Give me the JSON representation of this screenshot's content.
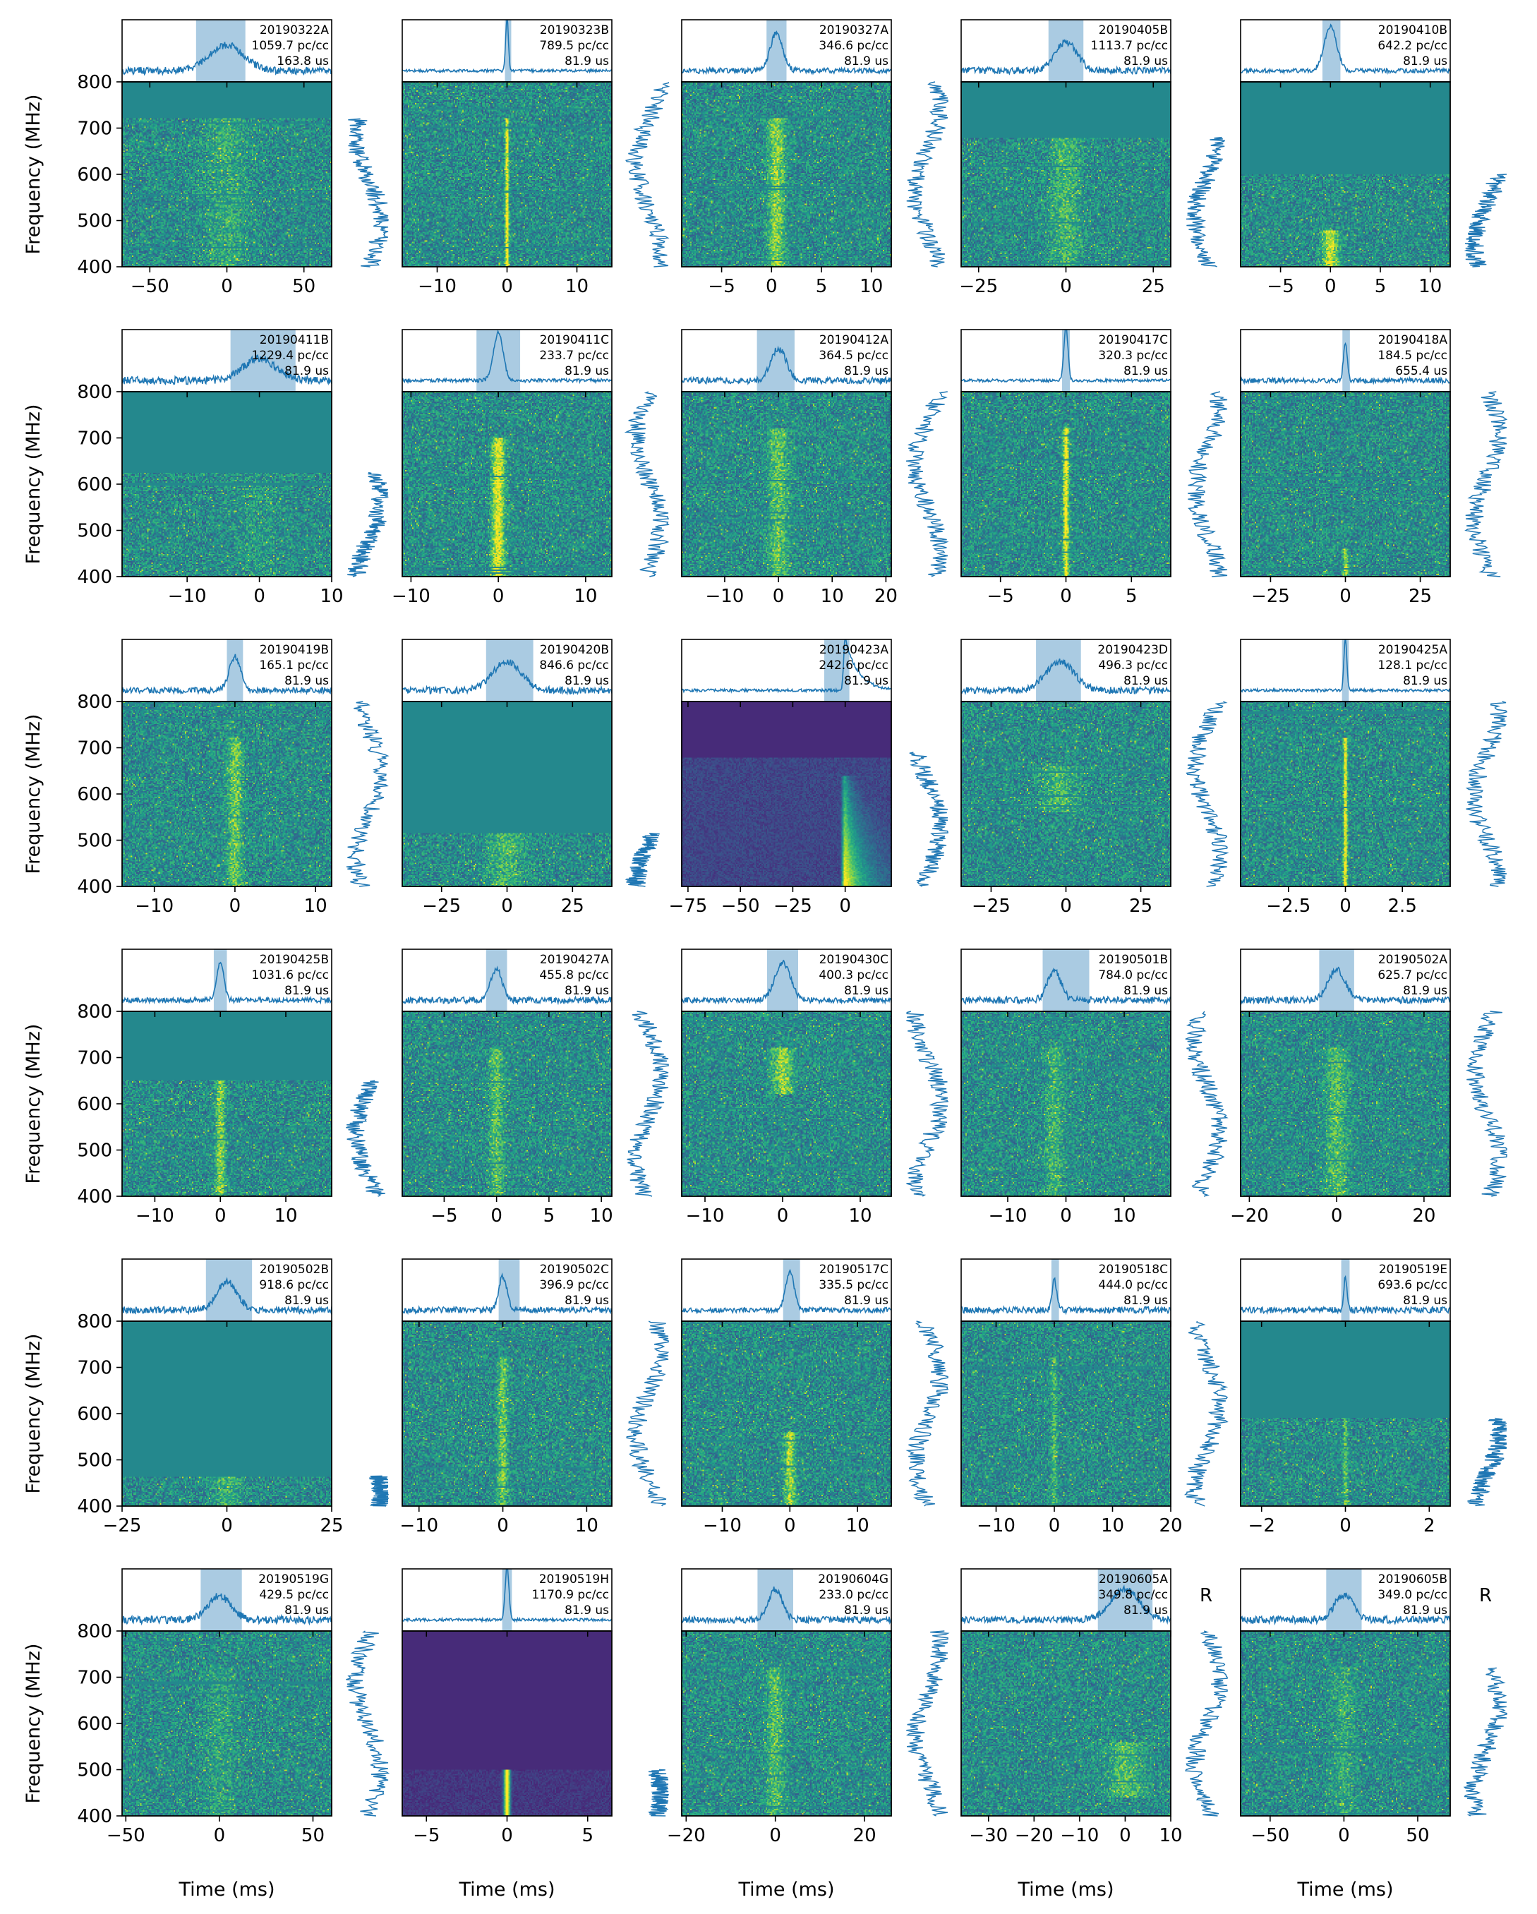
{
  "figure": {
    "ylabel": "Frequency (MHz)",
    "xlabel": "Time (ms)",
    "y_ticks": [
      400,
      500,
      600,
      700,
      800
    ]
  },
  "chart_data": [
    {
      "type": "heatmap",
      "name": "20190322A",
      "dm": "1059.7 pc/cc",
      "res": "163.8 us",
      "xlim": [
        -68,
        68
      ],
      "xticks": [
        -50,
        0,
        50
      ],
      "highlight": [
        -20,
        12
      ],
      "peak": 0,
      "width": 14,
      "heat": "speckle",
      "band": [
        400,
        720
      ],
      "burst_band": [
        400,
        720
      ],
      "burst_strength": 0.2,
      "spec": [
        400,
        720
      ],
      "marker": null
    },
    {
      "type": "heatmap",
      "name": "20190323B",
      "dm": "789.5 pc/cc",
      "res": "81.9 us",
      "xlim": [
        -15,
        15
      ],
      "xticks": [
        -10,
        0,
        10
      ],
      "highlight": [
        -0.3,
        0.6
      ],
      "peak": 0,
      "width": 0.25,
      "heat": "speckle",
      "band": [
        400,
        800
      ],
      "burst_band": [
        400,
        720
      ],
      "burst_strength": 1,
      "spec": [
        400,
        800
      ],
      "marker": null
    },
    {
      "type": "heatmap",
      "name": "20190327A",
      "dm": "346.6 pc/cc",
      "res": "81.9 us",
      "xlim": [
        -9,
        12
      ],
      "xticks": [
        -5,
        0,
        5,
        10
      ],
      "highlight": [
        -0.5,
        1.5
      ],
      "peak": 0.5,
      "width": 0.8,
      "heat": "speckle",
      "band": [
        400,
        800
      ],
      "burst_band": [
        400,
        720
      ],
      "burst_strength": 0.55,
      "spec": [
        400,
        800
      ],
      "marker": null
    },
    {
      "type": "heatmap",
      "name": "20190405B",
      "dm": "1113.7 pc/cc",
      "res": "81.9 us",
      "xlim": [
        -30,
        30
      ],
      "xticks": [
        -25,
        0,
        25
      ],
      "highlight": [
        -5,
        5
      ],
      "peak": 0,
      "width": 4,
      "heat": "speckle",
      "band": [
        400,
        680
      ],
      "burst_band": [
        400,
        680
      ],
      "burst_strength": 0.3,
      "spec": [
        400,
        680
      ],
      "marker": null
    },
    {
      "type": "heatmap",
      "name": "20190410B",
      "dm": "642.2 pc/cc",
      "res": "81.9 us",
      "xlim": [
        -9,
        12
      ],
      "xticks": [
        -5,
        0,
        5,
        10
      ],
      "highlight": [
        -0.8,
        1
      ],
      "peak": 0,
      "width": 0.8,
      "heat": "speckle",
      "band": [
        400,
        600
      ],
      "burst_band": [
        400,
        480
      ],
      "burst_strength": 0.75,
      "spec": [
        400,
        600
      ],
      "marker": null
    },
    {
      "type": "heatmap",
      "name": "20190411B",
      "dm": "1229.4 pc/cc",
      "res": "81.9 us",
      "xlim": [
        -19,
        10
      ],
      "xticks": [
        -10,
        0,
        10
      ],
      "highlight": [
        -4,
        5
      ],
      "peak": 0,
      "width": 3,
      "heat": "speckle",
      "band": [
        400,
        625
      ],
      "burst_band": [
        400,
        625
      ],
      "burst_strength": 0.1,
      "spec": [
        400,
        625
      ],
      "marker": null
    },
    {
      "type": "heatmap",
      "name": "20190411C",
      "dm": "233.7 pc/cc",
      "res": "81.9 us",
      "xlim": [
        -11,
        13
      ],
      "xticks": [
        -10,
        0,
        10
      ],
      "highlight": [
        -2.5,
        2.5
      ],
      "peak": 0,
      "width": 0.7,
      "heat": "speckle",
      "band": [
        400,
        800
      ],
      "burst_band": [
        400,
        700
      ],
      "burst_strength": 0.85,
      "spec": [
        400,
        800
      ],
      "marker": null
    },
    {
      "type": "heatmap",
      "name": "20190412A",
      "dm": "364.5 pc/cc",
      "res": "81.9 us",
      "xlim": [
        -18,
        21
      ],
      "xticks": [
        -10,
        0,
        10,
        20
      ],
      "highlight": [
        -4,
        3
      ],
      "peak": 0,
      "width": 1.8,
      "heat": "speckle",
      "band": [
        400,
        800
      ],
      "burst_band": [
        400,
        720
      ],
      "burst_strength": 0.4,
      "spec": [
        400,
        800
      ],
      "marker": null
    },
    {
      "type": "heatmap",
      "name": "20190417C",
      "dm": "320.3 pc/cc",
      "res": "81.9 us",
      "xlim": [
        -8,
        8
      ],
      "xticks": [
        -5,
        0,
        5
      ],
      "highlight": [
        -0.3,
        0.3
      ],
      "peak": 0,
      "width": 0.2,
      "heat": "speckle",
      "band": [
        400,
        800
      ],
      "burst_band": [
        400,
        720
      ],
      "burst_strength": 1,
      "spec": [
        400,
        800
      ],
      "marker": null
    },
    {
      "type": "heatmap",
      "name": "20190418A",
      "dm": "184.5 pc/cc",
      "res": "655.4 us",
      "xlim": [
        -35,
        35
      ],
      "xticks": [
        -25,
        0,
        25
      ],
      "highlight": [
        -1,
        1.5
      ],
      "peak": 0,
      "width": 0.8,
      "heat": "speckle",
      "band": [
        400,
        800
      ],
      "burst_band": [
        400,
        460
      ],
      "burst_strength": 0.6,
      "spec": [
        400,
        800
      ],
      "marker": null
    },
    {
      "type": "heatmap",
      "name": "20190419B",
      "dm": "165.1 pc/cc",
      "res": "81.9 us",
      "xlim": [
        -14,
        12
      ],
      "xticks": [
        -10,
        0,
        10
      ],
      "highlight": [
        -1,
        1
      ],
      "peak": 0,
      "width": 0.9,
      "heat": "speckle",
      "band": [
        400,
        800
      ],
      "burst_band": [
        400,
        720
      ],
      "burst_strength": 0.45,
      "spec": [
        400,
        800
      ],
      "marker": null
    },
    {
      "type": "heatmap",
      "name": "20190420B",
      "dm": "846.6 pc/cc",
      "res": "81.9 us",
      "xlim": [
        -40,
        40
      ],
      "xticks": [
        -25,
        0,
        25
      ],
      "highlight": [
        -8,
        10
      ],
      "peak": 0,
      "width": 7,
      "heat": "speckle",
      "band": [
        400,
        515
      ],
      "burst_band": [
        400,
        515
      ],
      "burst_strength": 0.3,
      "spec": [
        400,
        515
      ],
      "marker": null
    },
    {
      "type": "heatmap",
      "name": "20190423A",
      "dm": "242.6 pc/cc",
      "res": "81.9 us",
      "xlim": [
        -78,
        22
      ],
      "xticks": [
        -75,
        -50,
        -25,
        0
      ],
      "highlight": [
        -10,
        2
      ],
      "peak": 0,
      "width": 3,
      "heat": "scatter",
      "band": [
        400,
        680
      ],
      "burst_band": [
        400,
        640
      ],
      "burst_strength": 1,
      "spec": [
        400,
        690
      ],
      "marker": null
    },
    {
      "type": "heatmap",
      "name": "20190423D",
      "dm": "496.3 pc/cc",
      "res": "81.9 us",
      "xlim": [
        -35,
        35
      ],
      "xticks": [
        -25,
        0,
        25
      ],
      "highlight": [
        -10,
        5
      ],
      "peak": -2,
      "width": 6,
      "heat": "speckle",
      "band": [
        400,
        800
      ],
      "burst_band": [
        560,
        660
      ],
      "burst_strength": 0.3,
      "spec": [
        400,
        800
      ],
      "marker": null
    },
    {
      "type": "heatmap",
      "name": "20190425A",
      "dm": "128.1 pc/cc",
      "res": "81.9 us",
      "xlim": [
        -4.6,
        4.6
      ],
      "xticks": [
        -2.5,
        0,
        2.5
      ],
      "highlight": [
        -0.15,
        0.15
      ],
      "peak": 0,
      "width": 0.08,
      "heat": "speckle",
      "band": [
        400,
        800
      ],
      "burst_band": [
        400,
        720
      ],
      "burst_strength": 1,
      "spec": [
        400,
        800
      ],
      "marker": null
    },
    {
      "type": "heatmap",
      "name": "20190425B",
      "dm": "1031.6 pc/cc",
      "res": "81.9 us",
      "xlim": [
        -15,
        17
      ],
      "xticks": [
        -10,
        0,
        10
      ],
      "highlight": [
        -1,
        1
      ],
      "peak": 0,
      "width": 0.7,
      "heat": "speckle",
      "band": [
        400,
        650
      ],
      "burst_band": [
        400,
        650
      ],
      "burst_strength": 0.55,
      "spec": [
        400,
        650
      ],
      "marker": null
    },
    {
      "type": "heatmap",
      "name": "20190427A",
      "dm": "455.8 pc/cc",
      "res": "81.9 us",
      "xlim": [
        -9,
        11
      ],
      "xticks": [
        -5,
        0,
        5,
        10
      ],
      "highlight": [
        -1,
        1
      ],
      "peak": 0,
      "width": 0.7,
      "heat": "speckle",
      "band": [
        400,
        800
      ],
      "burst_band": [
        400,
        720
      ],
      "burst_strength": 0.35,
      "spec": [
        400,
        800
      ],
      "marker": null
    },
    {
      "type": "heatmap",
      "name": "20190430C",
      "dm": "400.3 pc/cc",
      "res": "81.9 us",
      "xlim": [
        -13,
        14
      ],
      "xticks": [
        -10,
        0,
        10
      ],
      "highlight": [
        -2,
        2
      ],
      "peak": 0,
      "width": 1.3,
      "heat": "speckle",
      "band": [
        400,
        800
      ],
      "burst_band": [
        620,
        720
      ],
      "burst_strength": 0.55,
      "spec": [
        400,
        800
      ],
      "marker": null
    },
    {
      "type": "heatmap",
      "name": "20190501B",
      "dm": "784.0 pc/cc",
      "res": "81.9 us",
      "xlim": [
        -18,
        18
      ],
      "xticks": [
        -10,
        0,
        10
      ],
      "highlight": [
        -4,
        4
      ],
      "peak": -2,
      "width": 1.5,
      "heat": "speckle",
      "band": [
        400,
        800
      ],
      "burst_band": [
        400,
        720
      ],
      "burst_strength": 0.3,
      "spec": [
        400,
        800
      ],
      "marker": null
    },
    {
      "type": "heatmap",
      "name": "20190502A",
      "dm": "625.7 pc/cc",
      "res": "81.9 us",
      "xlim": [
        -22,
        26
      ],
      "xticks": [
        -20,
        0,
        20
      ],
      "highlight": [
        -4,
        4
      ],
      "peak": 0,
      "width": 2.5,
      "heat": "speckle",
      "band": [
        400,
        800
      ],
      "burst_band": [
        400,
        720
      ],
      "burst_strength": 0.35,
      "spec": [
        400,
        800
      ],
      "marker": null
    },
    {
      "type": "heatmap",
      "name": "20190502B",
      "dm": "918.6 pc/cc",
      "res": "81.9 us",
      "xlim": [
        -25,
        25
      ],
      "xticks": [
        -25,
        0,
        25
      ],
      "highlight": [
        -5,
        6
      ],
      "peak": 0,
      "width": 3,
      "heat": "speckle",
      "band": [
        400,
        465
      ],
      "burst_band": [
        400,
        465
      ],
      "burst_strength": 0.3,
      "spec": [
        400,
        465
      ],
      "marker": null
    },
    {
      "type": "heatmap",
      "name": "20190502C",
      "dm": "396.9 pc/cc",
      "res": "81.9 us",
      "xlim": [
        -12,
        13
      ],
      "xticks": [
        -10,
        0,
        10
      ],
      "highlight": [
        -0.5,
        2
      ],
      "peak": 0,
      "width": 0.6,
      "heat": "speckle",
      "band": [
        400,
        800
      ],
      "burst_band": [
        400,
        720
      ],
      "burst_strength": 0.45,
      "spec": [
        400,
        800
      ],
      "marker": null
    },
    {
      "type": "heatmap",
      "name": "20190517C",
      "dm": "335.5 pc/cc",
      "res": "81.9 us",
      "xlim": [
        -16,
        15
      ],
      "xticks": [
        -10,
        0,
        10
      ],
      "highlight": [
        -1,
        1.5
      ],
      "peak": 0,
      "width": 0.8,
      "heat": "speckle",
      "band": [
        400,
        800
      ],
      "burst_band": [
        400,
        560
      ],
      "burst_strength": 0.6,
      "spec": [
        400,
        800
      ],
      "marker": null
    },
    {
      "type": "heatmap",
      "name": "20190518C",
      "dm": "444.0 pc/cc",
      "res": "81.9 us",
      "xlim": [
        -16,
        20
      ],
      "xticks": [
        -10,
        0,
        10,
        20
      ],
      "highlight": [
        -0.5,
        0.8
      ],
      "peak": 0,
      "width": 0.5,
      "heat": "speckle",
      "band": [
        400,
        800
      ],
      "burst_band": [
        400,
        720
      ],
      "burst_strength": 0.35,
      "spec": [
        400,
        800
      ],
      "marker": null
    },
    {
      "type": "heatmap",
      "name": "20190519E",
      "dm": "693.6 pc/cc",
      "res": "81.9 us",
      "xlim": [
        -2.5,
        2.5
      ],
      "xticks": [
        -2,
        0,
        2
      ],
      "highlight": [
        -0.1,
        0.1
      ],
      "peak": 0,
      "width": 0.05,
      "heat": "speckle",
      "band": [
        400,
        590
      ],
      "burst_band": [
        400,
        590
      ],
      "burst_strength": 0.4,
      "spec": [
        400,
        590
      ],
      "marker": null
    },
    {
      "type": "heatmap",
      "name": "20190519G",
      "dm": "429.5 pc/cc",
      "res": "81.9 us",
      "xlim": [
        -52,
        60
      ],
      "xticks": [
        -50,
        0,
        50
      ],
      "highlight": [
        -10,
        12
      ],
      "peak": 0,
      "width": 8,
      "heat": "speckle",
      "band": [
        400,
        800
      ],
      "burst_band": [
        400,
        720
      ],
      "burst_strength": 0.15,
      "spec": [
        400,
        800
      ],
      "marker": null
    },
    {
      "type": "heatmap",
      "name": "20190519H",
      "dm": "1170.9 pc/cc",
      "res": "81.9 us",
      "xlim": [
        -6.5,
        6.5
      ],
      "xticks": [
        -5,
        0,
        5
      ],
      "highlight": [
        -0.3,
        0.3
      ],
      "peak": 0,
      "width": 0.15,
      "heat": "dark",
      "band": [
        400,
        500
      ],
      "burst_band": [
        400,
        500
      ],
      "burst_strength": 1,
      "spec": [
        400,
        500
      ],
      "marker": null
    },
    {
      "type": "heatmap",
      "name": "20190604G",
      "dm": "233.0 pc/cc",
      "res": "81.9 us",
      "xlim": [
        -21,
        26
      ],
      "xticks": [
        -20,
        0,
        20
      ],
      "highlight": [
        -4,
        4
      ],
      "peak": 0,
      "width": 2,
      "heat": "speckle",
      "band": [
        400,
        800
      ],
      "burst_band": [
        400,
        720
      ],
      "burst_strength": 0.35,
      "spec": [
        400,
        800
      ],
      "marker": null
    },
    {
      "type": "heatmap",
      "name": "20190605A",
      "dm": "349.8 pc/cc",
      "res": "81.9 us",
      "xlim": [
        -36,
        10
      ],
      "xticks": [
        -30,
        -20,
        -10,
        0,
        10
      ],
      "highlight": [
        -6,
        6
      ],
      "peak": 0,
      "width": 4,
      "heat": "speckle",
      "band": [
        400,
        800
      ],
      "burst_band": [
        440,
        560
      ],
      "burst_strength": 0.35,
      "spec": [
        400,
        800
      ],
      "marker": "R"
    },
    {
      "type": "heatmap",
      "name": "20190605B",
      "dm": "349.0 pc/cc",
      "res": "81.9 us",
      "xlim": [
        -70,
        72
      ],
      "xticks": [
        -50,
        0,
        50
      ],
      "highlight": [
        -12,
        12
      ],
      "peak": 0,
      "width": 8,
      "heat": "speckle",
      "band": [
        400,
        800
      ],
      "burst_band": [
        400,
        720
      ],
      "burst_strength": 0.2,
      "spec": [
        400,
        720
      ],
      "marker": "R"
    }
  ]
}
